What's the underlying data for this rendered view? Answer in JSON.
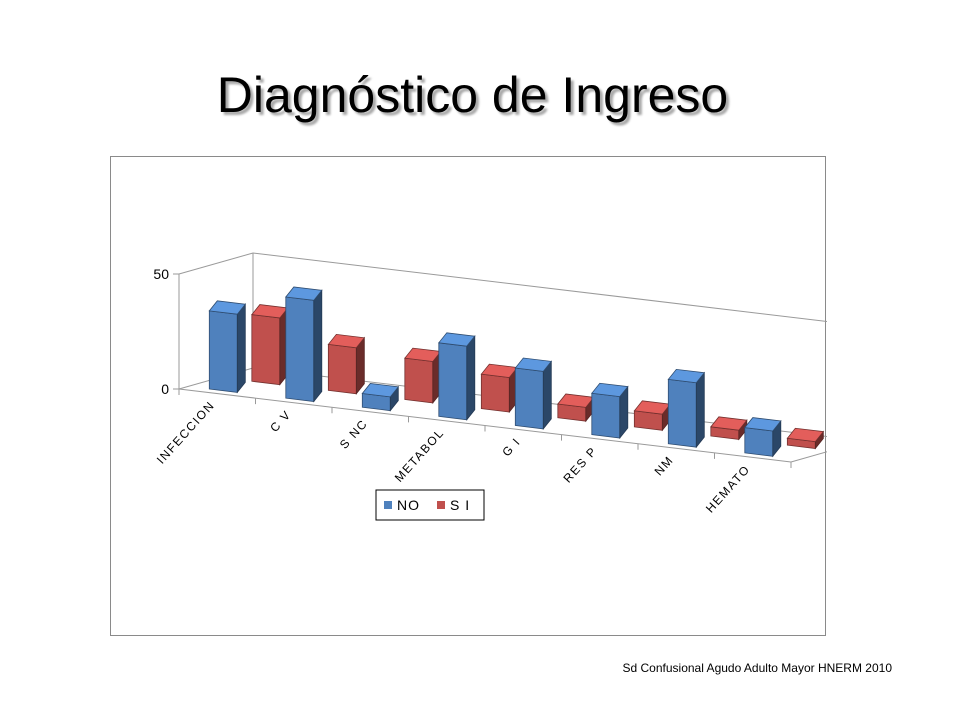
{
  "slide": {
    "title": "Diagnóstico de Ingreso",
    "footer": "Sd Confusional Agudo Adulto Mayor HNERM 2010"
  },
  "chart_data": {
    "type": "bar",
    "subtype": "3d-clustered-column",
    "title": "",
    "xlabel": "",
    "ylabel": "",
    "categories": [
      "INFECCION",
      "C V",
      "S NC",
      "METABOL",
      "G I",
      "RES P",
      "NM",
      "HEMATO"
    ],
    "series": [
      {
        "name": "NO",
        "values": [
          34,
          44,
          6,
          32,
          25,
          18,
          28,
          11
        ],
        "color": "#4f81bd"
      },
      {
        "name": "S I",
        "values": [
          29,
          20,
          18,
          15,
          6,
          7,
          4,
          3
        ],
        "color": "#c0504d"
      }
    ],
    "ylim": [
      0,
      50
    ],
    "yticks": [
      0,
      50
    ],
    "grid": false,
    "legend_position": "bottom"
  }
}
